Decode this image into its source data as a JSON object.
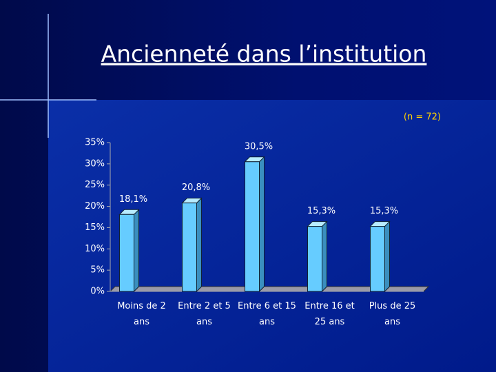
{
  "chart_data": {
    "type": "bar",
    "title": "Ancienneté dans l’institution",
    "subtitle": "(n = 72)",
    "categories": [
      "Moins de 2 ans",
      "Entre 2 et 5 ans",
      "Entre 6 et 15 ans",
      "Entre 16 et 25 ans",
      "Plus de 25 ans"
    ],
    "values": [
      18.1,
      20.8,
      30.5,
      15.3,
      15.3
    ],
    "value_labels": [
      "18,1%",
      "20,8%",
      "30,5%",
      "15,3%",
      "15,3%"
    ],
    "color": "#66ccff",
    "ylim": [
      0,
      35
    ],
    "yticks": [
      {
        "value": 0,
        "label": "0%"
      },
      {
        "value": 5,
        "label": "5%"
      },
      {
        "value": 10,
        "label": "10%"
      },
      {
        "value": 15,
        "label": "15%"
      },
      {
        "value": 20,
        "label": "20%"
      },
      {
        "value": 25,
        "label": "25%"
      },
      {
        "value": 30,
        "label": "30%"
      },
      {
        "value": 35,
        "label": "35%"
      }
    ]
  }
}
